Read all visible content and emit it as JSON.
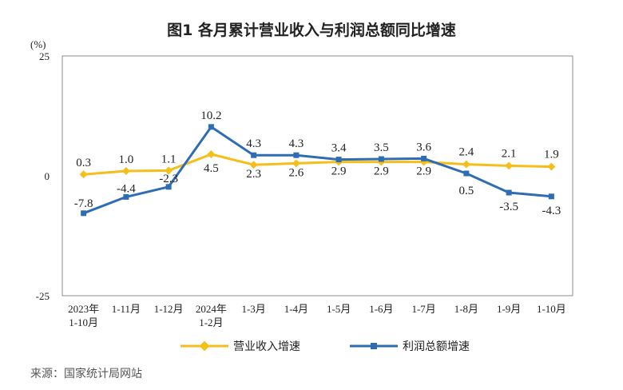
{
  "chart_data": {
    "type": "line",
    "title": "图1  各月累计营业收入与利润总额同比增速",
    "ylabel": "(%)",
    "ylim": [
      -25,
      25
    ],
    "yticks": [
      25,
      0,
      -25
    ],
    "categories": [
      [
        "2023年",
        "1-10月"
      ],
      [
        "1-11月"
      ],
      [
        "1-12月"
      ],
      [
        "2024年",
        "1-2月"
      ],
      [
        "1-3月"
      ],
      [
        "1-4月"
      ],
      [
        "1-5月"
      ],
      [
        "1-6月"
      ],
      [
        "1-7月"
      ],
      [
        "1-8月"
      ],
      [
        "1-9月"
      ],
      [
        "1-10月"
      ]
    ],
    "series": [
      {
        "name": "营业收入增速",
        "color": "#F5BE1A",
        "marker": "diamond",
        "values": [
          0.3,
          1.0,
          1.1,
          4.5,
          2.3,
          2.6,
          2.9,
          2.9,
          2.9,
          2.4,
          2.1,
          1.9
        ]
      },
      {
        "name": "利润总额增速",
        "color": "#2E6DB4",
        "marker": "square",
        "values": [
          -7.8,
          -4.4,
          -2.3,
          10.2,
          4.3,
          4.3,
          3.4,
          3.5,
          3.6,
          0.5,
          -3.5,
          -4.3
        ]
      }
    ]
  },
  "source": "来源：国家统计局网站"
}
